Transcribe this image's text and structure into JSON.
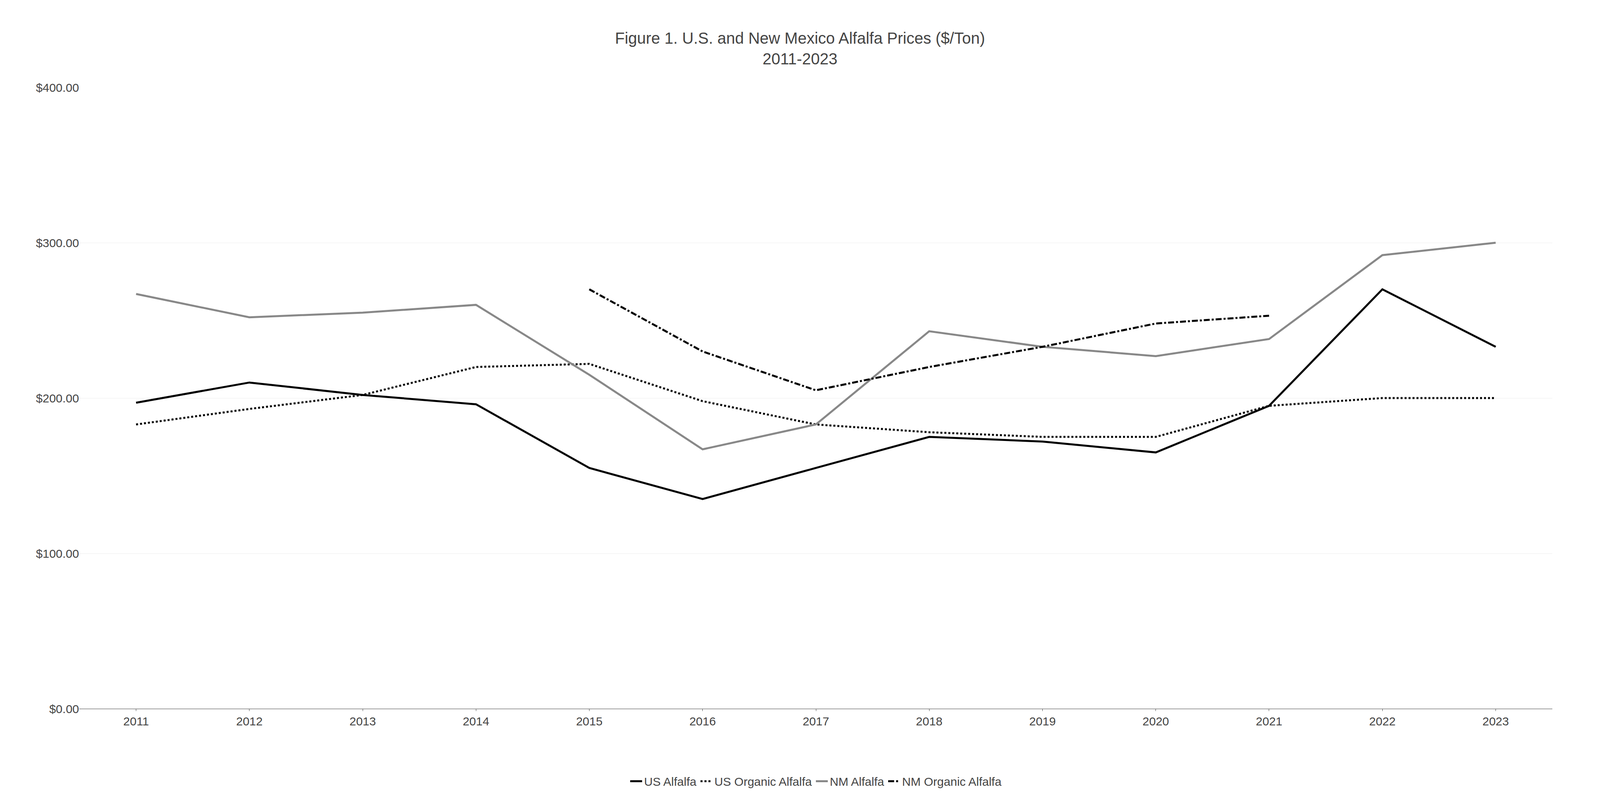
{
  "chart_data": {
    "type": "line",
    "title": "Figure 1. U.S. and New Mexico Alfalfa Prices ($/Ton)",
    "subtitle": "2011-2023",
    "x": [
      2011,
      2012,
      2013,
      2014,
      2015,
      2016,
      2017,
      2018,
      2019,
      2020,
      2021,
      2022,
      2023
    ],
    "series": [
      {
        "name": "US Alfalfa",
        "color": "#000000",
        "line_style": "solid",
        "values": [
          197,
          210,
          202,
          196,
          155,
          135,
          155,
          175,
          172,
          165,
          195,
          270,
          233
        ]
      },
      {
        "name": "US Organic Alfalfa",
        "color": "#000000",
        "line_style": "dotted",
        "values": [
          183,
          193,
          202,
          220,
          222,
          198,
          183,
          178,
          175,
          175,
          195,
          200,
          200
        ]
      },
      {
        "name": "NM Alfalfa",
        "color": "#888888",
        "line_style": "solid",
        "values": [
          267,
          252,
          255,
          260,
          215,
          167,
          183,
          243,
          233,
          227,
          238,
          292,
          300
        ]
      },
      {
        "name": "NM Organic Alfalfa",
        "color": "#000000",
        "line_style": "dashdot",
        "values": [
          null,
          null,
          null,
          null,
          270,
          230,
          205,
          220,
          233,
          248,
          253,
          null,
          null
        ]
      }
    ],
    "xlim": [
      2010.5,
      2023.5
    ],
    "xticks": [
      2011,
      2012,
      2013,
      2014,
      2015,
      2016,
      2017,
      2018,
      2019,
      2020,
      2021,
      2022,
      2023
    ],
    "ylim": [
      0,
      400
    ],
    "yticks": [
      {
        "value": 0,
        "label": "$0.00"
      },
      {
        "value": 100,
        "label": "$100.00"
      },
      {
        "value": 200,
        "label": "$200.00"
      },
      {
        "value": 300,
        "label": "$300.00"
      },
      {
        "value": 400,
        "label": "$400.00"
      }
    ],
    "grid": "y",
    "legend": "bottom"
  }
}
